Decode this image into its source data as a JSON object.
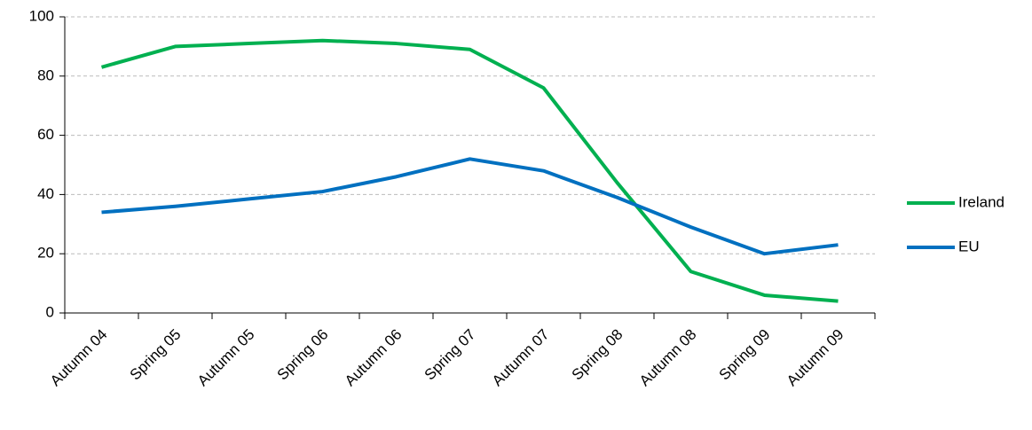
{
  "chart_data": {
    "type": "line",
    "categories": [
      "Autumn 04",
      "Spring 05",
      "Autumn 05",
      "Spring 06",
      "Autumn 06",
      "Spring 07",
      "Autumn 07",
      "Spring 08",
      "Autumn 08",
      "Spring 09",
      "Autumn 09"
    ],
    "series": [
      {
        "name": "Ireland",
        "color": "#00b050",
        "values": [
          83,
          90,
          91,
          92,
          91,
          89,
          76,
          44,
          14,
          6,
          4
        ]
      },
      {
        "name": "EU",
        "color": "#0070c0",
        "values": [
          34,
          36,
          38.5,
          41,
          46,
          52,
          48,
          39,
          29,
          20,
          23
        ]
      }
    ],
    "ylim": [
      0,
      100
    ],
    "yticks": [
      0,
      20,
      40,
      60,
      80,
      100
    ],
    "grid": true,
    "legend": "right"
  }
}
